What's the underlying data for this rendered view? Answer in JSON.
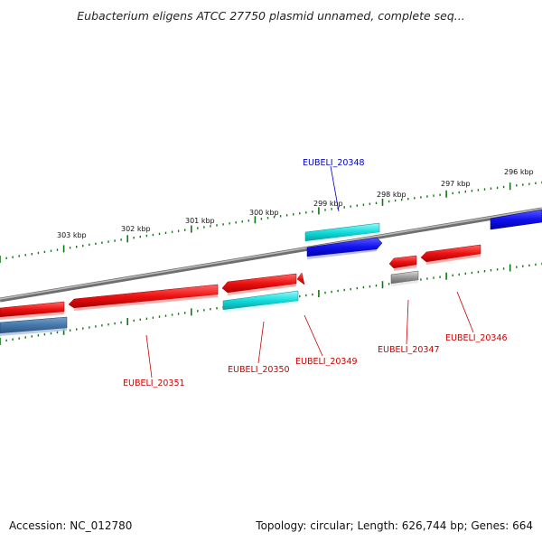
{
  "title": "Eubacterium eligens ATCC 27750 plasmid unnamed, complete seq...",
  "footer": {
    "accession": "Accession: NC_012780",
    "summary": "Topology: circular; Length: 626,744 bp; Genes: 664"
  },
  "scale_labels": [
    "296 kbp",
    "297 kbp",
    "298 kbp",
    "299 kbp",
    "300 kbp",
    "301 kbp",
    "302 kbp",
    "303 kbp"
  ],
  "gene_labels": [
    "EUBELI_20348",
    "EUBELI_20346",
    "EUBELI_20347",
    "EUBELI_20349",
    "EUBELI_20350",
    "EUBELI_20351"
  ],
  "colors": {
    "red": "#ee1111",
    "cyan": "#11dddd",
    "blue": "#1111ee",
    "steel": "#4477aa",
    "gray": "#999999",
    "tick": "#117711",
    "label_red": "#cc0000",
    "label_blue": "#0000cc"
  }
}
